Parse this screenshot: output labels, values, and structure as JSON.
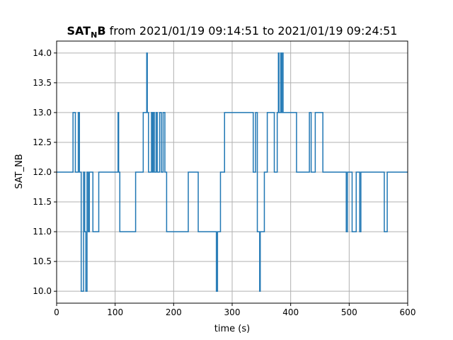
{
  "chart_data": {
    "type": "line",
    "step": true,
    "title_main": "SAT",
    "title_sub": "N",
    "title_tail": "B",
    "title_rest": " from 2021/01/19 09:14:51 to 2021/01/19 09:24:51",
    "xlabel": "time (s)",
    "ylabel": "SAT_NB",
    "xlim": [
      0,
      600
    ],
    "ylim": [
      9.8,
      14.2
    ],
    "xticks": [
      0,
      100,
      200,
      300,
      400,
      500,
      600
    ],
    "xtick_labels": [
      "0",
      "100",
      "200",
      "300",
      "400",
      "500",
      "600"
    ],
    "yticks": [
      10.0,
      10.5,
      11.0,
      11.5,
      12.0,
      12.5,
      13.0,
      13.5,
      14.0
    ],
    "ytick_labels": [
      "10.0",
      "10.5",
      "11.0",
      "11.5",
      "12.0",
      "12.5",
      "13.0",
      "13.5",
      "14.0"
    ],
    "grid": true,
    "line_color": "#1f77b4",
    "series": [
      {
        "x": [
          0,
          28,
          32,
          37,
          39,
          42,
          46,
          48,
          50,
          52,
          54,
          56,
          58,
          62,
          72,
          77,
          90,
          105,
          106,
          108,
          110,
          120,
          135,
          148,
          154,
          155,
          157,
          162,
          164,
          165,
          167,
          170,
          172,
          176,
          179,
          182,
          185,
          188,
          191,
          200,
          225,
          240,
          242,
          253,
          262,
          270,
          273,
          275,
          280,
          282,
          287,
          290,
          300,
          318,
          325,
          336,
          340,
          343,
          345,
          347,
          348,
          350,
          355,
          357,
          360,
          370,
          372,
          377,
          379,
          380,
          383,
          384,
          386,
          387,
          395,
          410,
          420,
          432,
          435,
          442,
          450,
          455,
          470,
          490,
          495,
          497,
          500,
          505,
          512,
          518,
          520,
          530,
          545,
          560,
          565,
          575,
          600
        ],
        "y": [
          12,
          13,
          12,
          13,
          12,
          10,
          12,
          11,
          10,
          12,
          11,
          12,
          12,
          11,
          12,
          12,
          12,
          13,
          12,
          11,
          11,
          11,
          12,
          13,
          14,
          13,
          12,
          13,
          12,
          13,
          12,
          13,
          12,
          13,
          12,
          13,
          12,
          11,
          11,
          11,
          12,
          12,
          11,
          11,
          11,
          11,
          10,
          11,
          12,
          12,
          13,
          13,
          13,
          13,
          13,
          12,
          13,
          11,
          11,
          10,
          11,
          11,
          12,
          12,
          13,
          13,
          12,
          13,
          14,
          13,
          14,
          13,
          14,
          13,
          13,
          12,
          12,
          13,
          12,
          13,
          13,
          12,
          12,
          12,
          11,
          12,
          12,
          11,
          12,
          11,
          12,
          12,
          12,
          11,
          12,
          12,
          12
        ]
      }
    ]
  }
}
